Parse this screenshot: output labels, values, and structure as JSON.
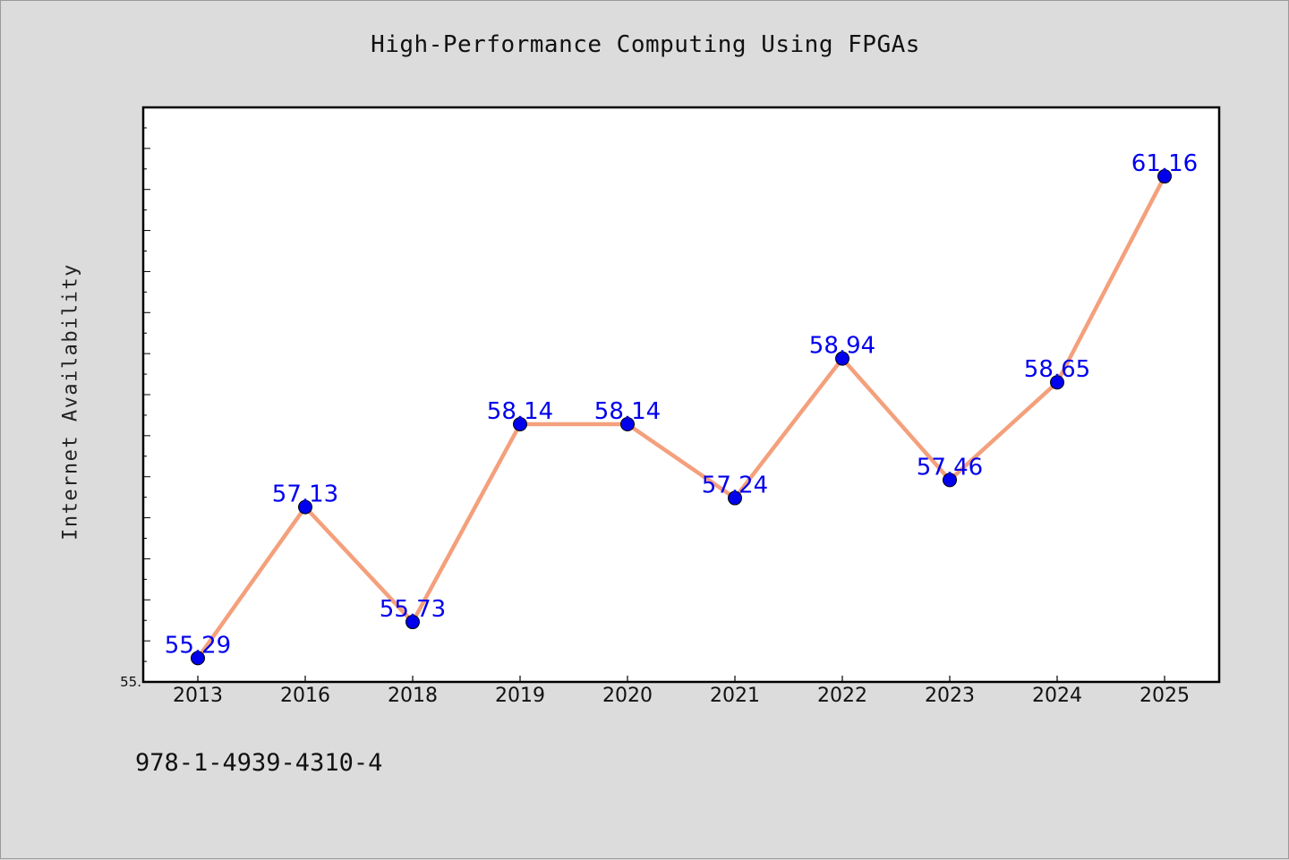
{
  "chart_data": {
    "type": "line",
    "title": "High-Performance Computing Using FPGAs",
    "xlabel": "",
    "ylabel": "Internet Availability",
    "categories": [
      "2013",
      "2016",
      "2018",
      "2019",
      "2020",
      "2021",
      "2022",
      "2023",
      "2024",
      "2025"
    ],
    "values": [
      55.29,
      57.13,
      55.73,
      58.14,
      58.14,
      57.24,
      58.94,
      57.46,
      58.65,
      61.16
    ],
    "data_labels": [
      "55.29",
      "57.13",
      "55.73",
      "58.14",
      "58.14",
      "57.24",
      "58.94",
      "57.46",
      "58.65",
      "61.16"
    ],
    "ylim": [
      55.0,
      62.0
    ],
    "ytick_label": "55.",
    "grid": false,
    "line_color": "#f4a07c",
    "marker_color": "#0000ee",
    "label_color": "#0000ee"
  },
  "footer": {
    "isbn": "978-1-4939-4310-4"
  }
}
